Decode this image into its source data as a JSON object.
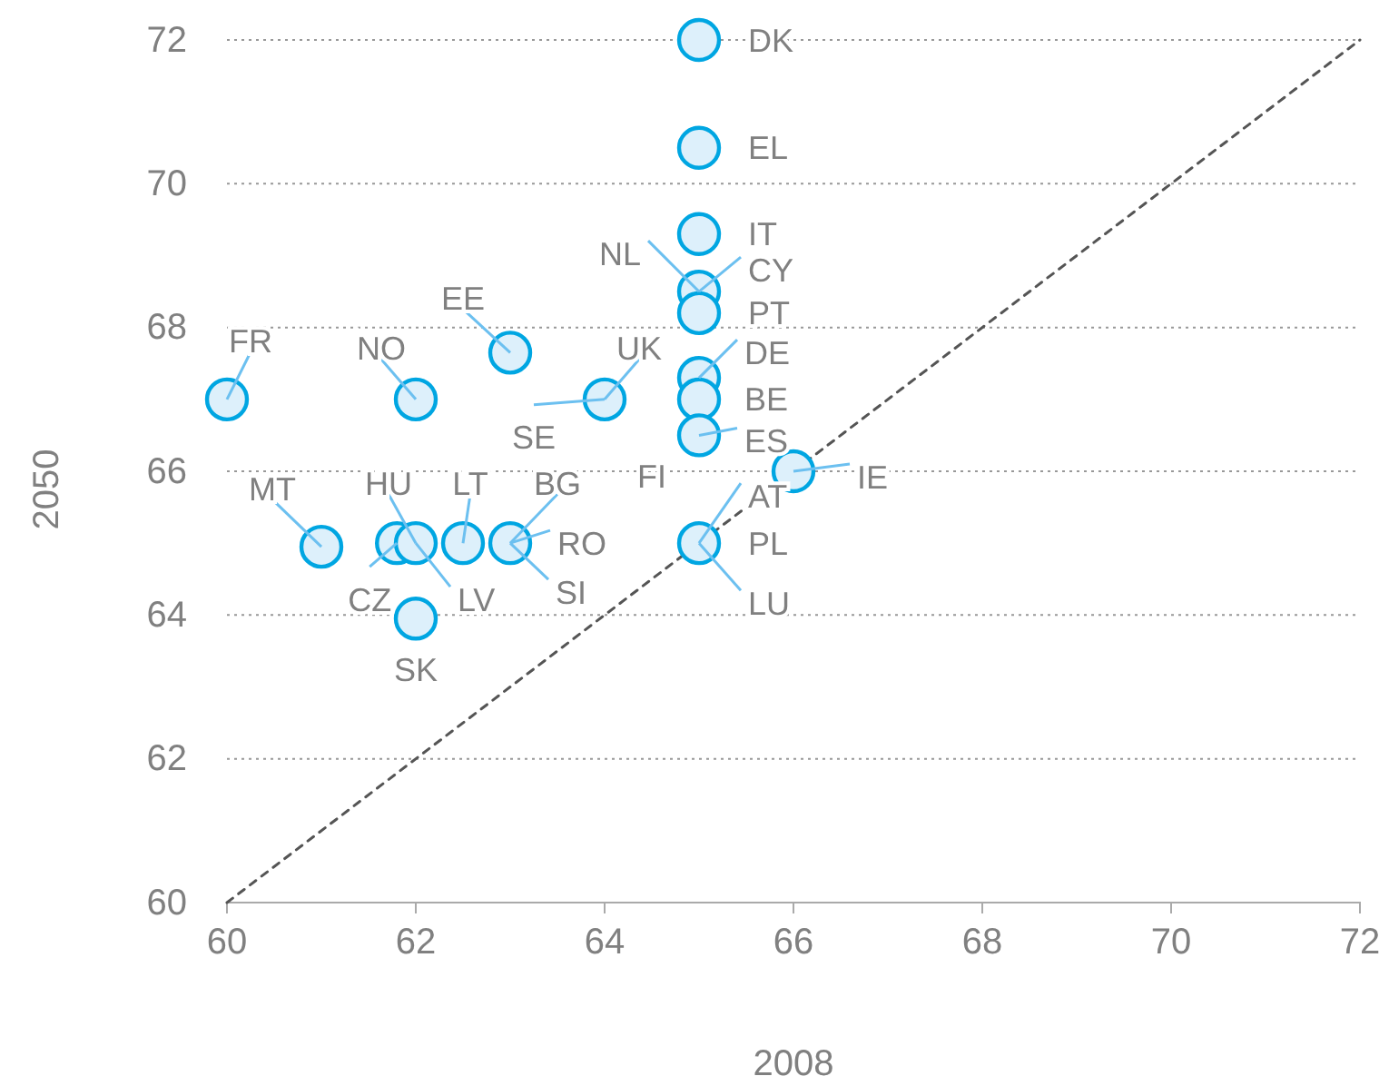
{
  "chart_data": {
    "type": "scatter",
    "xlabel": "2008",
    "ylabel": "2050",
    "xlim": [
      60,
      72
    ],
    "ylim": [
      60,
      72
    ],
    "xticks": [
      60,
      62,
      64,
      66,
      68,
      70,
      72
    ],
    "yticks": [
      60,
      62,
      64,
      66,
      68,
      70,
      72
    ],
    "grid": "y",
    "series": [
      {
        "color": "#00a6e2",
        "marker": "circle",
        "x": [
          65,
          65,
          65,
          65,
          65,
          65,
          65,
          65,
          66,
          65,
          60,
          62,
          63,
          64,
          61,
          61.8,
          62,
          62.5,
          63,
          62
        ],
        "values": [
          72,
          70.5,
          69.3,
          68.5,
          68.2,
          67.3,
          67,
          66.5,
          66,
          65,
          67,
          67,
          67.65,
          67,
          64.95,
          65,
          65,
          65,
          65,
          63.95
        ]
      },
      {
        "type": "line",
        "color": "#555555",
        "line_style": "dashed",
        "x": [
          60,
          72
        ],
        "values": [
          60,
          72
        ]
      }
    ],
    "annotations": [
      {
        "text": "DK",
        "x": 65,
        "y": 72
      },
      {
        "text": "EL",
        "x": 65,
        "y": 70.5
      },
      {
        "text": "IT",
        "x": 65,
        "y": 69.3
      },
      {
        "text": "NL",
        "x": 65,
        "y": 68.5
      },
      {
        "text": "CY",
        "x": 65,
        "y": 68.5
      },
      {
        "text": "PT",
        "x": 65,
        "y": 68.2
      },
      {
        "text": "DE",
        "x": 65,
        "y": 67.3
      },
      {
        "text": "BE",
        "x": 65,
        "y": 67
      },
      {
        "text": "ES",
        "x": 65,
        "y": 66.5
      },
      {
        "text": "IE",
        "x": 66,
        "y": 66
      },
      {
        "text": "FI",
        "x": 65,
        "y": 65
      },
      {
        "text": "AT",
        "x": 65,
        "y": 65
      },
      {
        "text": "PL",
        "x": 65,
        "y": 65
      },
      {
        "text": "LU",
        "x": 65,
        "y": 65
      },
      {
        "text": "FR",
        "x": 60,
        "y": 67
      },
      {
        "text": "NO",
        "x": 62,
        "y": 67
      },
      {
        "text": "EE",
        "x": 63,
        "y": 67.65
      },
      {
        "text": "UK",
        "x": 64,
        "y": 67
      },
      {
        "text": "SE",
        "x": 64,
        "y": 67
      },
      {
        "text": "MT",
        "x": 61,
        "y": 64.95
      },
      {
        "text": "HU",
        "x": 62,
        "y": 65
      },
      {
        "text": "LT",
        "x": 62.5,
        "y": 65
      },
      {
        "text": "BG",
        "x": 63,
        "y": 65
      },
      {
        "text": "RO",
        "x": 63,
        "y": 65
      },
      {
        "text": "SI",
        "x": 63,
        "y": 65
      },
      {
        "text": "CZ",
        "x": 61.8,
        "y": 65
      },
      {
        "text": "LV",
        "x": 62,
        "y": 65
      },
      {
        "text": "SK",
        "x": 62,
        "y": 63.95
      }
    ]
  }
}
